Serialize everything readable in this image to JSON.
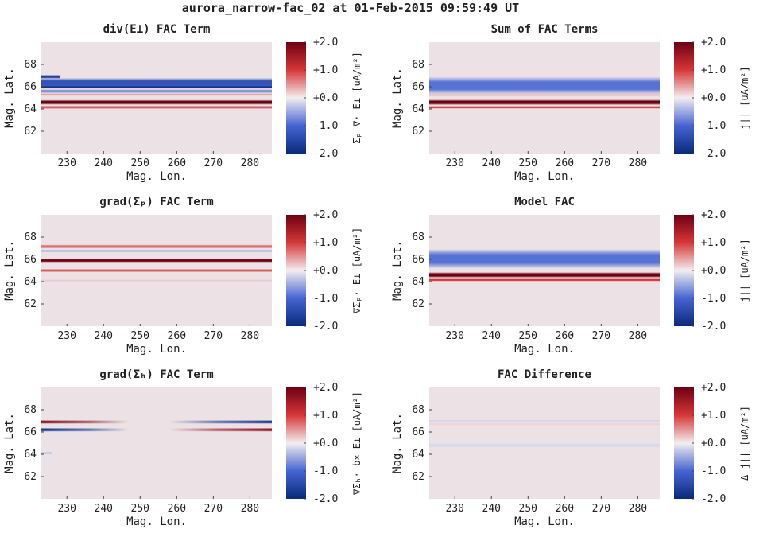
{
  "figure": {
    "title": "aurora_narrow-fac_02 at 01-Feb-2015 09:59:49 UT"
  },
  "colors": {
    "background_field": "#ece2e6",
    "cmap_neg": "#0a2a7a",
    "cmap_mid": "#f2eef0",
    "cmap_pos": "#6e0012"
  },
  "chart_data": [
    {
      "type": "heatmap",
      "title": "div(E⊥) FAC Term",
      "xlabel": "Mag. Lon.",
      "ylabel": "Mag. Lat.",
      "xlim": [
        223,
        286
      ],
      "ylim": [
        60,
        70
      ],
      "xticks": [
        230,
        240,
        250,
        260,
        270,
        280
      ],
      "yticks": [
        62,
        64,
        66,
        68
      ],
      "clim": [
        -2,
        2
      ],
      "cticks": [
        "+2.0",
        "+1.0",
        "+0.0",
        "-1.0",
        "-2.0"
      ],
      "clabel": "Σₚ ∇· E⊥ [uA/m²]",
      "bands": [
        {
          "lat": 64.6,
          "width": 0.45,
          "value": 2.0
        },
        {
          "lat": 64.15,
          "width": 0.3,
          "value": 0.8
        },
        {
          "lat": 66.0,
          "width": 0.35,
          "value": -2.0
        },
        {
          "lat": 66.35,
          "width": 0.9,
          "value": -1.3
        },
        {
          "lat": 66.9,
          "width": 0.35,
          "value": -1.6,
          "lon_range": [
            223,
            228
          ]
        },
        {
          "lat": 65.6,
          "width": 0.35,
          "value": -0.7
        },
        {
          "lat": 65.3,
          "width": 0.25,
          "value": 0.4
        }
      ]
    },
    {
      "type": "heatmap",
      "title": "Sum of FAC Terms",
      "xlabel": "Mag. Lon.",
      "ylabel": "Mag. Lat.",
      "xlim": [
        223,
        286
      ],
      "ylim": [
        60,
        70
      ],
      "xticks": [
        230,
        240,
        250,
        260,
        270,
        280
      ],
      "yticks": [
        62,
        64,
        66,
        68
      ],
      "clim": [
        -2,
        2
      ],
      "cticks": [
        "+2.0",
        "+1.0",
        "+0.0",
        "-1.0",
        "-2.0"
      ],
      "clabel": "j|| [uA/m²]",
      "bands": [
        {
          "lat": 64.6,
          "width": 0.5,
          "value": 2.0
        },
        {
          "lat": 64.15,
          "width": 0.25,
          "value": 1.0
        },
        {
          "lat": 66.1,
          "width": 1.6,
          "value": -0.9
        },
        {
          "lat": 65.25,
          "width": 0.2,
          "value": 0.35
        }
      ]
    },
    {
      "type": "heatmap",
      "title": "grad(Σₚ) FAC Term",
      "xlabel": "Mag. Lon.",
      "ylabel": "Mag. Lat.",
      "xlim": [
        223,
        286
      ],
      "ylim": [
        60,
        70
      ],
      "xticks": [
        230,
        240,
        250,
        260,
        270,
        280
      ],
      "yticks": [
        62,
        64,
        66,
        68
      ],
      "clim": [
        -2,
        2
      ],
      "cticks": [
        "+2.0",
        "+1.0",
        "+0.0",
        "-1.0",
        "-2.0"
      ],
      "clabel": "∇Σₚ· E⊥ [uA/m²]",
      "bands": [
        {
          "lat": 65.9,
          "width": 0.35,
          "value": 2.0
        },
        {
          "lat": 65.0,
          "width": 0.3,
          "value": 0.8
        },
        {
          "lat": 67.15,
          "width": 0.35,
          "value": 0.7
        },
        {
          "lat": 66.75,
          "width": 0.25,
          "value": -0.4
        },
        {
          "lat": 64.1,
          "width": 0.2,
          "value": 0.2
        }
      ]
    },
    {
      "type": "heatmap",
      "title": "Model FAC",
      "xlabel": "Mag. Lon.",
      "ylabel": "Mag. Lat.",
      "xlim": [
        223,
        286
      ],
      "ylim": [
        60,
        70
      ],
      "xticks": [
        230,
        240,
        250,
        260,
        270,
        280
      ],
      "yticks": [
        62,
        64,
        66,
        68
      ],
      "clim": [
        -2,
        2
      ],
      "cticks": [
        "+2.0",
        "+1.0",
        "+0.0",
        "-1.0",
        "-2.0"
      ],
      "clabel": "j|| [uA/m²]",
      "bands": [
        {
          "lat": 64.6,
          "width": 0.5,
          "value": 2.0
        },
        {
          "lat": 64.15,
          "width": 0.25,
          "value": 1.0
        },
        {
          "lat": 66.05,
          "width": 1.75,
          "value": -0.9
        }
      ]
    },
    {
      "type": "heatmap",
      "title": "grad(Σₕ) FAC Term",
      "xlabel": "Mag. Lon.",
      "ylabel": "Mag. Lat.",
      "xlim": [
        223,
        286
      ],
      "ylim": [
        60,
        70
      ],
      "xticks": [
        230,
        240,
        250,
        260,
        270,
        280
      ],
      "yticks": [
        62,
        64,
        66,
        68
      ],
      "clim": [
        -2,
        2
      ],
      "cticks": [
        "+2.0",
        "+1.0",
        "+0.0",
        "-1.0",
        "-2.0"
      ],
      "clabel": "∇Σₕ· b× E⊥ [uA/m²]",
      "bands": [
        {
          "lat": 66.9,
          "width": 0.35,
          "value": 1.8,
          "lon_range": [
            223,
            247
          ],
          "fade": "right"
        },
        {
          "lat": 66.2,
          "width": 0.35,
          "value": -1.8,
          "lon_range": [
            223,
            247
          ],
          "fade": "right"
        },
        {
          "lat": 66.9,
          "width": 0.35,
          "value": -1.8,
          "lon_range": [
            258,
            286
          ],
          "fade": "left"
        },
        {
          "lat": 66.2,
          "width": 0.35,
          "value": 1.6,
          "lon_range": [
            258,
            286
          ],
          "fade": "left"
        },
        {
          "lat": 64.1,
          "width": 0.25,
          "value": -0.3,
          "lon_range": [
            223,
            226
          ]
        }
      ]
    },
    {
      "type": "heatmap",
      "title": "FAC Difference",
      "xlabel": "Mag. Lon.",
      "ylabel": "Mag. Lat.",
      "xlim": [
        223,
        286
      ],
      "ylim": [
        60,
        70
      ],
      "xticks": [
        230,
        240,
        250,
        260,
        270,
        280
      ],
      "yticks": [
        62,
        64,
        66,
        68
      ],
      "clim": [
        -2,
        2
      ],
      "cticks": [
        "+2.0",
        "+1.0",
        "+0.0",
        "-1.0",
        "-2.0"
      ],
      "clabel": "Δ j|| [uA/m²]",
      "bands": [
        {
          "lat": 67.0,
          "width": 0.25,
          "value": -0.15
        },
        {
          "lat": 66.7,
          "width": 0.2,
          "value": 0.15
        },
        {
          "lat": 64.8,
          "width": 0.4,
          "value": -0.15
        },
        {
          "lat": 65.9,
          "width": 0.25,
          "value": 0.08
        }
      ]
    }
  ]
}
